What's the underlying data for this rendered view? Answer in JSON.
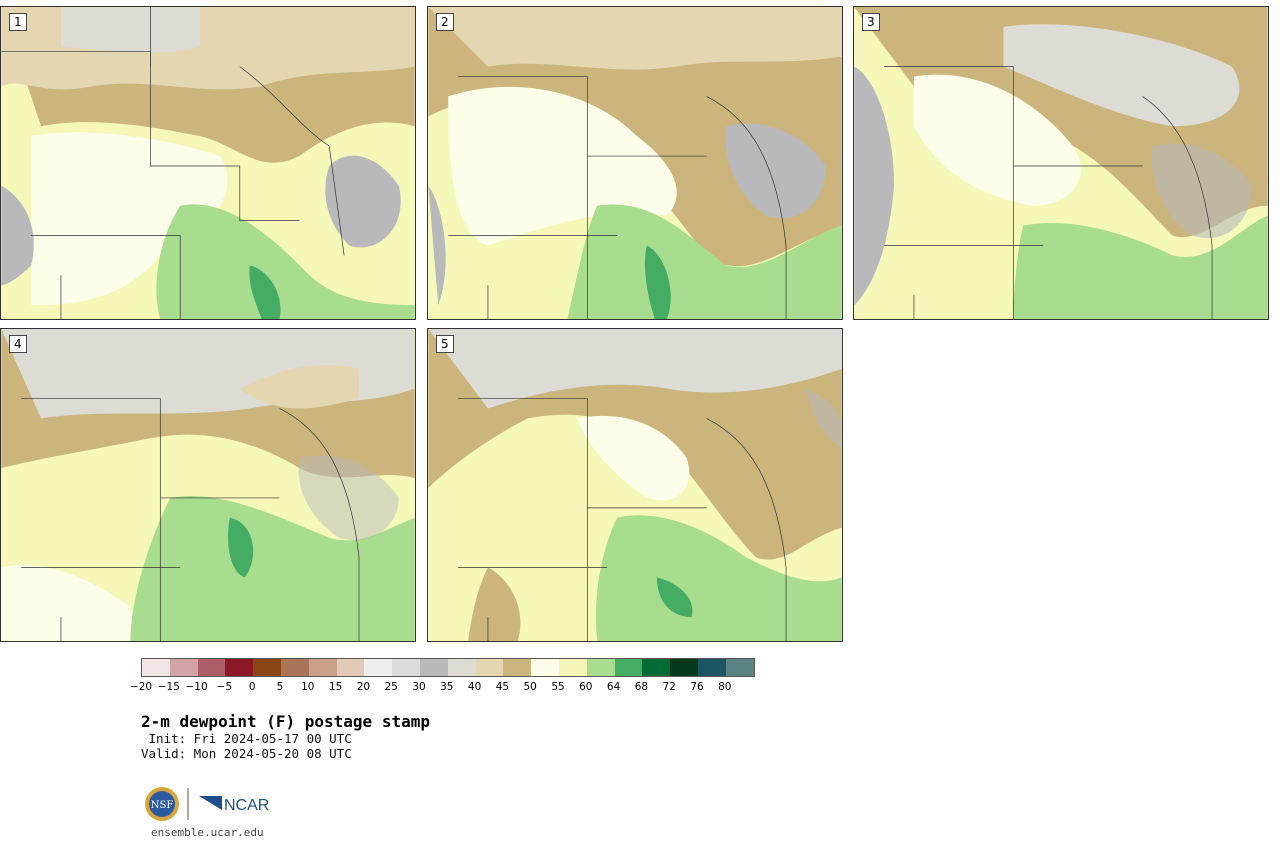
{
  "panels": [
    {
      "label": "1"
    },
    {
      "label": "2"
    },
    {
      "label": "3"
    },
    {
      "label": "4"
    },
    {
      "label": "5"
    }
  ],
  "colorbar": {
    "colors": [
      "#f3e6e6",
      "#d2a4a8",
      "#ae5e66",
      "#8b1824",
      "#8a4615",
      "#a9765a",
      "#c9a08a",
      "#e3c9b8",
      "#efefef",
      "#dcdcdc",
      "#b9b9bb",
      "#dcdcd4",
      "#e3d6b0",
      "#cbb57d",
      "#fdfdea",
      "#f5f7b8",
      "#a8dc8e",
      "#44ad63",
      "#036c35",
      "#05391c",
      "#1c5664",
      "#5c8383"
    ],
    "ticks": [
      "−20",
      "−15",
      "−10",
      "−5",
      "0",
      "5",
      "10",
      "15",
      "20",
      "25",
      "30",
      "35",
      "40",
      "45",
      "50",
      "55",
      "60",
      "64",
      "68",
      "72",
      "76",
      "80"
    ]
  },
  "title": "2-m dewpoint (F) postage stamp",
  "init": " Init: Fri 2024-05-17 00 UTC",
  "valid": "Valid: Mon 2024-05-20 08 UTC",
  "logos": {
    "nsf": "NSF",
    "ncar": "NCAR"
  },
  "site": "ensemble.ucar.edu"
}
